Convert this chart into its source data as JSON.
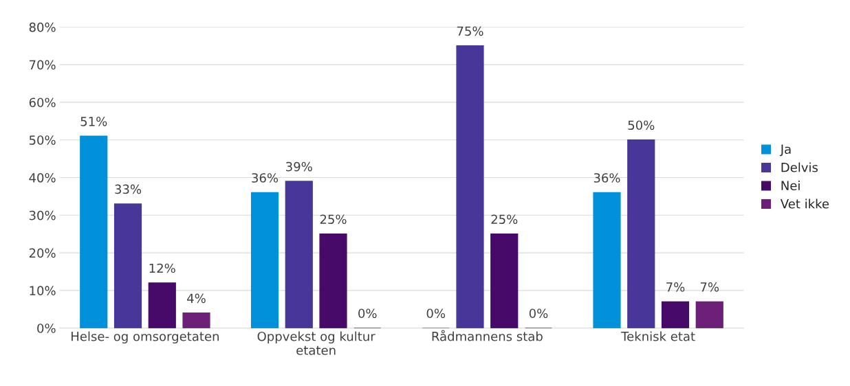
{
  "chart_data": {
    "type": "bar",
    "categories": [
      "Helse- og omsorgetaten",
      "Oppvekst og kultur etaten",
      "Rådmannens stab",
      "Teknisk etat"
    ],
    "series": [
      {
        "name": "Ja",
        "color": "#0091da",
        "values": [
          51,
          36,
          0,
          36
        ],
        "value_labels": [
          "51%",
          "36%",
          "0%",
          "36%"
        ]
      },
      {
        "name": "Delvis",
        "color": "#483698",
        "values": [
          33,
          39,
          75,
          50
        ],
        "value_labels": [
          "33%",
          "39%",
          "75%",
          "50%"
        ]
      },
      {
        "name": "Nei",
        "color": "#470a68",
        "values": [
          12,
          25,
          25,
          7
        ],
        "value_labels": [
          "12%",
          "25%",
          "25%",
          "7%"
        ]
      },
      {
        "name": "Vet ikke",
        "color": "#6d2077",
        "values": [
          4,
          0,
          0,
          7
        ],
        "value_labels": [
          "4%",
          "0%",
          "0%",
          "7%"
        ]
      }
    ],
    "ylim": [
      0,
      80
    ],
    "yticks": [
      {
        "value": 0,
        "label": "0%"
      },
      {
        "value": 10,
        "label": "10%"
      },
      {
        "value": 20,
        "label": "20%"
      },
      {
        "value": 30,
        "label": "30%"
      },
      {
        "value": 40,
        "label": "40%"
      },
      {
        "value": 50,
        "label": "50%"
      },
      {
        "value": 60,
        "label": "60%"
      },
      {
        "value": 70,
        "label": "70%"
      },
      {
        "value": 80,
        "label": "80%"
      }
    ],
    "grid": "y",
    "legend": "right"
  }
}
